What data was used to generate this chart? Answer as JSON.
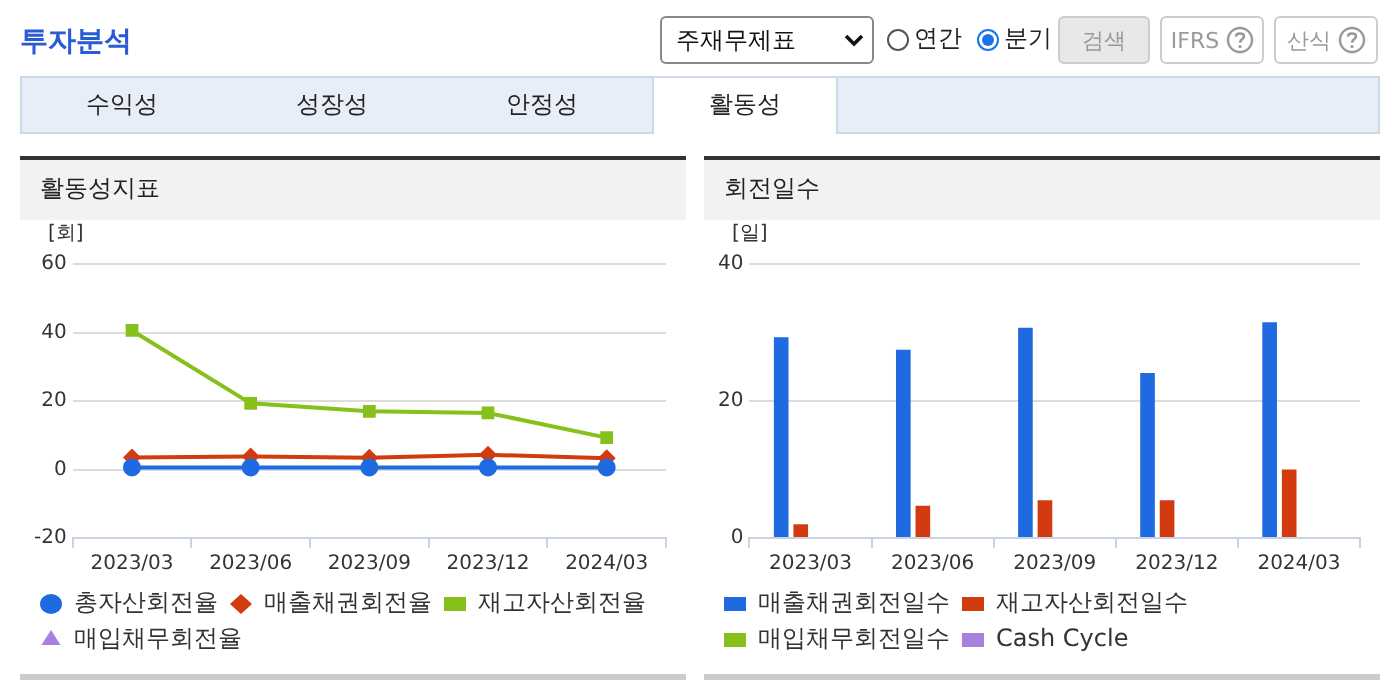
{
  "chart_data": [
    {
      "type": "other",
      "title": "투자분석",
      "annotations": [
        "주재무제표",
        "연간",
        "분기",
        "검색",
        "IFRS",
        "산식",
        "수익성",
        "성장성",
        "안정성",
        "활동성"
      ]
    },
    {
      "type": "line",
      "title": "활동성지표",
      "ylabel": "[회]",
      "categories": [
        "2023/03",
        "2023/06",
        "2023/09",
        "2023/12",
        "2024/03"
      ],
      "ylim": [
        -20,
        60
      ],
      "yticks": [
        -20,
        0,
        20,
        40,
        60
      ],
      "grid": "y",
      "legend": "bottom",
      "series": [
        {
          "name": "총자산회전율",
          "color": "#1f6ae0",
          "marker": "circle",
          "values": [
            0.6,
            0.6,
            0.6,
            0.6,
            0.6
          ]
        },
        {
          "name": "매출채권회전율",
          "color": "#d23a10",
          "marker": "diamond",
          "values": [
            3.5,
            3.8,
            3.4,
            4.3,
            3.3
          ]
        },
        {
          "name": "재고자산회전율",
          "color": "#86c01a",
          "marker": "square",
          "values": [
            40.6,
            19.3,
            17,
            16.5,
            9.3
          ]
        },
        {
          "name": "매입채무회전율",
          "color": "#a97fe0",
          "marker": "triangle",
          "values": [
            null,
            null,
            null,
            null,
            null
          ]
        }
      ]
    },
    {
      "type": "bar",
      "title": "회전일수",
      "ylabel": "[일]",
      "categories": [
        "2023/03",
        "2023/06",
        "2023/09",
        "2023/12",
        "2024/03"
      ],
      "ylim": [
        0,
        40
      ],
      "yticks": [
        0,
        20,
        40
      ],
      "grid": "y",
      "legend": "bottom",
      "series": [
        {
          "name": "매출채권회전일수",
          "color": "#1f6ae0",
          "values": [
            29.3,
            27.5,
            30.7,
            24.1,
            31.5
          ]
        },
        {
          "name": "재고자산회전일수",
          "color": "#d23a10",
          "values": [
            2,
            4.7,
            5.5,
            5.5,
            10
          ]
        },
        {
          "name": "매입채무회전일수",
          "color": "#86c01a",
          "values": [
            null,
            null,
            null,
            null,
            null
          ]
        },
        {
          "name": "Cash Cycle",
          "color": "#a97fe0",
          "values": [
            null,
            null,
            null,
            null,
            null
          ]
        }
      ]
    }
  ]
}
